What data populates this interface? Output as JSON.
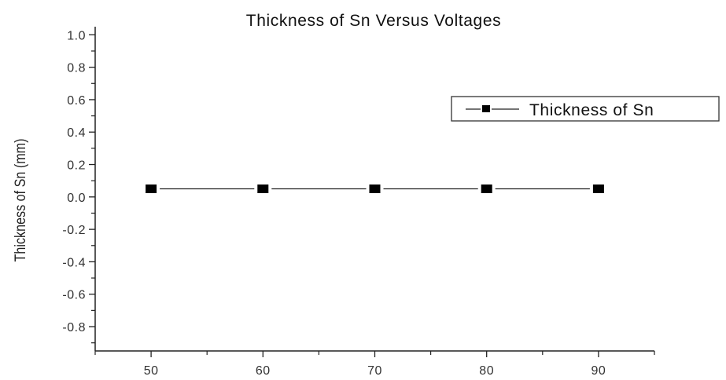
{
  "chart_data": {
    "type": "line",
    "title": "Thickness of Sn Versus Voltages",
    "xlabel": "",
    "ylabel": "Thickness of Sn (mm)",
    "x": [
      50,
      60,
      70,
      80,
      90
    ],
    "series": [
      {
        "name": "Thickness of Sn",
        "values": [
          0.05,
          0.05,
          0.05,
          0.05,
          0.05
        ],
        "marker": "square",
        "color": "#000000"
      }
    ],
    "xlim": [
      45,
      95
    ],
    "ylim": [
      -0.95,
      1.05
    ],
    "xticks": [
      50,
      60,
      70,
      80,
      90
    ],
    "xminor": [
      45,
      55,
      65,
      75,
      85,
      95
    ],
    "yticks": [
      1.0,
      0.8,
      0.6,
      0.4,
      0.2,
      0.0,
      -0.2,
      -0.4,
      -0.6,
      -0.8
    ],
    "yticklabels": [
      "1.0",
      "0.8",
      "0.6",
      "0.4",
      "0.2",
      "0.0",
      "-0.2",
      "-0.4",
      "-0.6",
      "-0.8"
    ],
    "yminor": [
      0.9,
      0.7,
      0.5,
      0.3,
      0.1,
      -0.1,
      -0.3,
      -0.5,
      -0.7,
      -0.9
    ],
    "grid": false,
    "legend_position": "upper right"
  },
  "colors": {
    "axis": "#222222",
    "line": "#222222",
    "marker": "#000000",
    "background": "#ffffff"
  }
}
